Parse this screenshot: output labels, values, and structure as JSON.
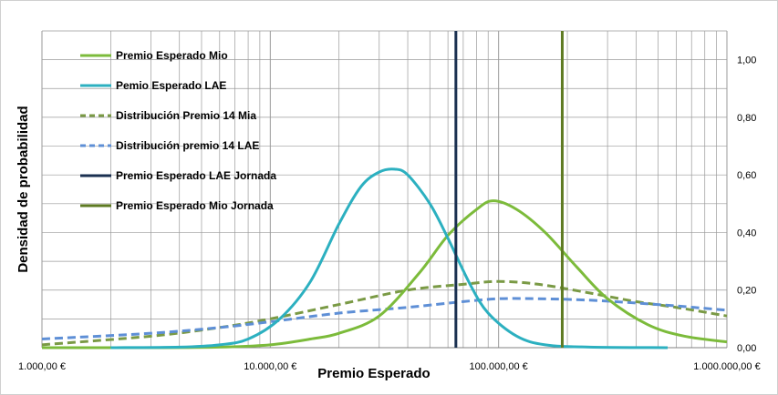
{
  "chart_data": {
    "type": "line",
    "title": "",
    "xlabel": "Premio Esperado",
    "ylabel": "Densidad de probabilidad",
    "x_scale": "log",
    "xlim": [
      1000,
      1000000
    ],
    "ylim": [
      0,
      1.1
    ],
    "x_ticks": [
      1000,
      10000,
      100000,
      1000000
    ],
    "x_tick_labels": [
      "1.000,00 €",
      "10.000,00 €",
      "100.000,00 €",
      "1.000.000,00 €"
    ],
    "y_ticks": [
      0,
      0.2,
      0.4,
      0.6,
      0.8,
      1.0
    ],
    "y_tick_labels": [
      "0,00",
      "0,20",
      "0,40",
      "0,60",
      "0,80",
      "1,00"
    ],
    "y_axis_side": "right",
    "grid": true,
    "legend_position": "top-left",
    "series": [
      {
        "name": "Premio Esperado Mio",
        "style": "solid",
        "color": "#7cbb3b",
        "x": [
          1000,
          3000,
          6000,
          10000,
          15000,
          20000,
          30000,
          45000,
          60000,
          80000,
          95000,
          120000,
          160000,
          220000,
          300000,
          450000,
          650000,
          1000000
        ],
        "y": [
          0.0,
          0.0,
          0.002,
          0.01,
          0.03,
          0.05,
          0.11,
          0.26,
          0.39,
          0.48,
          0.51,
          0.48,
          0.4,
          0.28,
          0.17,
          0.08,
          0.04,
          0.02
        ]
      },
      {
        "name": "Pemio Esperado LAE",
        "style": "solid",
        "color": "#2cb0c0",
        "x": [
          2000,
          4000,
          6000,
          8000,
          11000,
          15000,
          20000,
          25000,
          30000,
          35000,
          40000,
          50000,
          60000,
          75000,
          90000,
          120000,
          160000,
          250000,
          550000
        ],
        "y": [
          0.0,
          0.002,
          0.01,
          0.03,
          0.1,
          0.23,
          0.43,
          0.56,
          0.61,
          0.62,
          0.6,
          0.5,
          0.38,
          0.22,
          0.12,
          0.04,
          0.01,
          0.002,
          0.0
        ]
      },
      {
        "name": "Distribución Premio 14 Mia",
        "style": "dashed",
        "color": "#7a9a45",
        "x": [
          1000,
          3000,
          6000,
          10000,
          20000,
          40000,
          70000,
          100000,
          150000,
          250000,
          400000,
          600000,
          1000000
        ],
        "y": [
          0.01,
          0.04,
          0.07,
          0.1,
          0.15,
          0.2,
          0.22,
          0.23,
          0.22,
          0.19,
          0.16,
          0.14,
          0.11
        ]
      },
      {
        "name": "Distribución premio 14 LAE",
        "style": "dashed",
        "color": "#5e8fd6",
        "x": [
          1000,
          3000,
          6000,
          10000,
          20000,
          40000,
          70000,
          100000,
          150000,
          250000,
          400000,
          600000,
          1000000
        ],
        "y": [
          0.03,
          0.05,
          0.07,
          0.09,
          0.12,
          0.14,
          0.16,
          0.17,
          0.17,
          0.165,
          0.155,
          0.145,
          0.13
        ]
      },
      {
        "name": "Premio Esperado LAE Jornada",
        "style": "vertical",
        "color": "#1a3050",
        "x": [
          65000,
          65000
        ],
        "y": [
          0,
          1.1
        ]
      },
      {
        "name": "Premio Esperado Mio Jornada",
        "style": "vertical",
        "color": "#5e7a22",
        "x": [
          190000,
          190000
        ],
        "y": [
          0,
          1.1
        ]
      }
    ]
  }
}
